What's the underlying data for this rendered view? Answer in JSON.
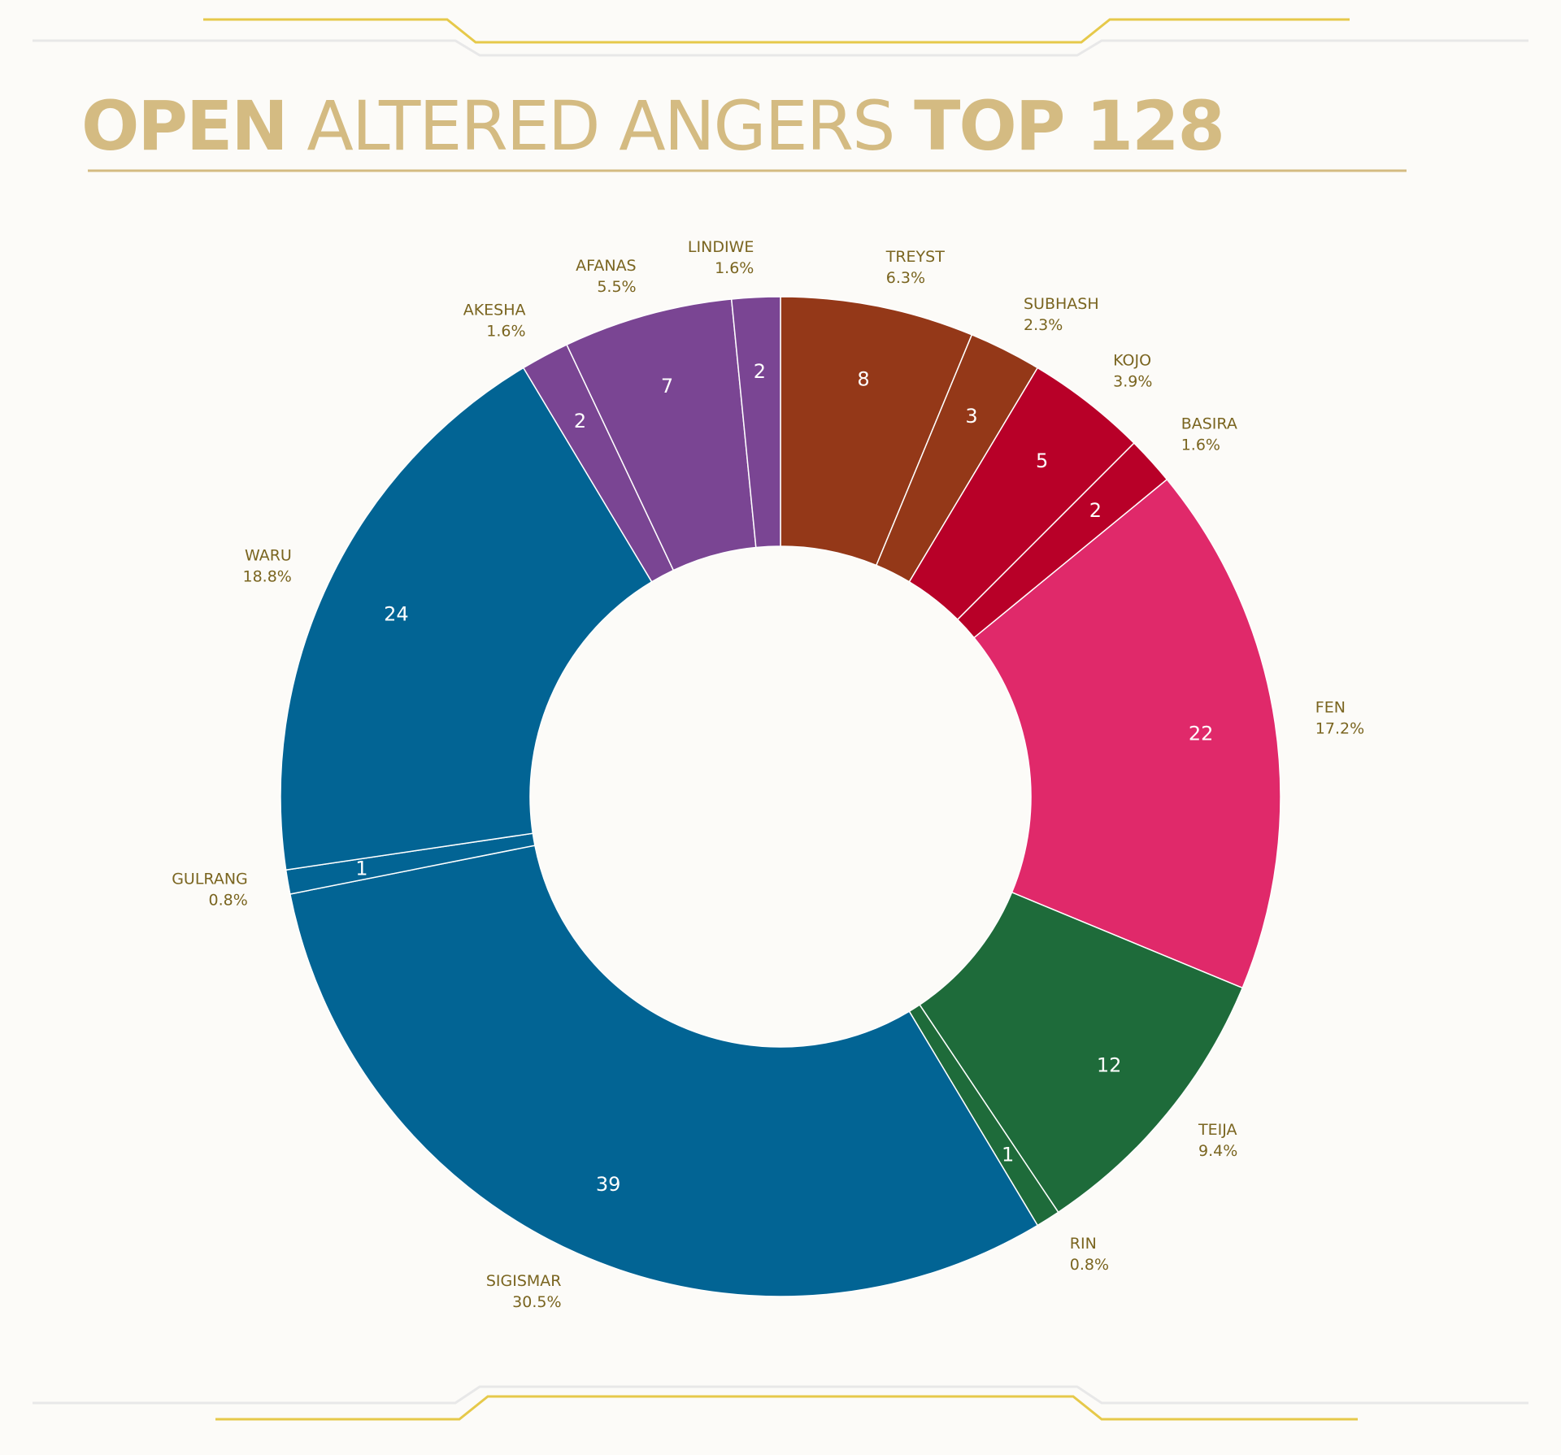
{
  "chart_data": {
    "type": "donut",
    "title_parts": [
      "OPEN",
      "ALTERED ANGERS",
      "TOP 128"
    ],
    "categories": [
      "TREYST",
      "SUBHASH",
      "KOJO",
      "BASIRA",
      "FEN",
      "TEIJA",
      "RIN",
      "SIGISMAR",
      "GULRANG",
      "WARU",
      "AKESHA",
      "AFANAS",
      "LINDIWE"
    ],
    "values": [
      8,
      3,
      5,
      2,
      22,
      12,
      1,
      39,
      1,
      24,
      2,
      7,
      2
    ],
    "percent_labels": [
      "6.3%",
      "2.3%",
      "3.9%",
      "1.6%",
      "17.2%",
      "9.4%",
      "0.8%",
      "30.5%",
      "0.8%",
      "18.8%",
      "1.6%",
      "5.5%",
      "1.6%"
    ],
    "colors": [
      "#943818",
      "#943818",
      "#b80028",
      "#b80028",
      "#e0296a",
      "#1e6b3a",
      "#1e6b3a",
      "#026494",
      "#026494",
      "#026494",
      "#7a4593",
      "#7a4593",
      "#7a4593"
    ]
  }
}
